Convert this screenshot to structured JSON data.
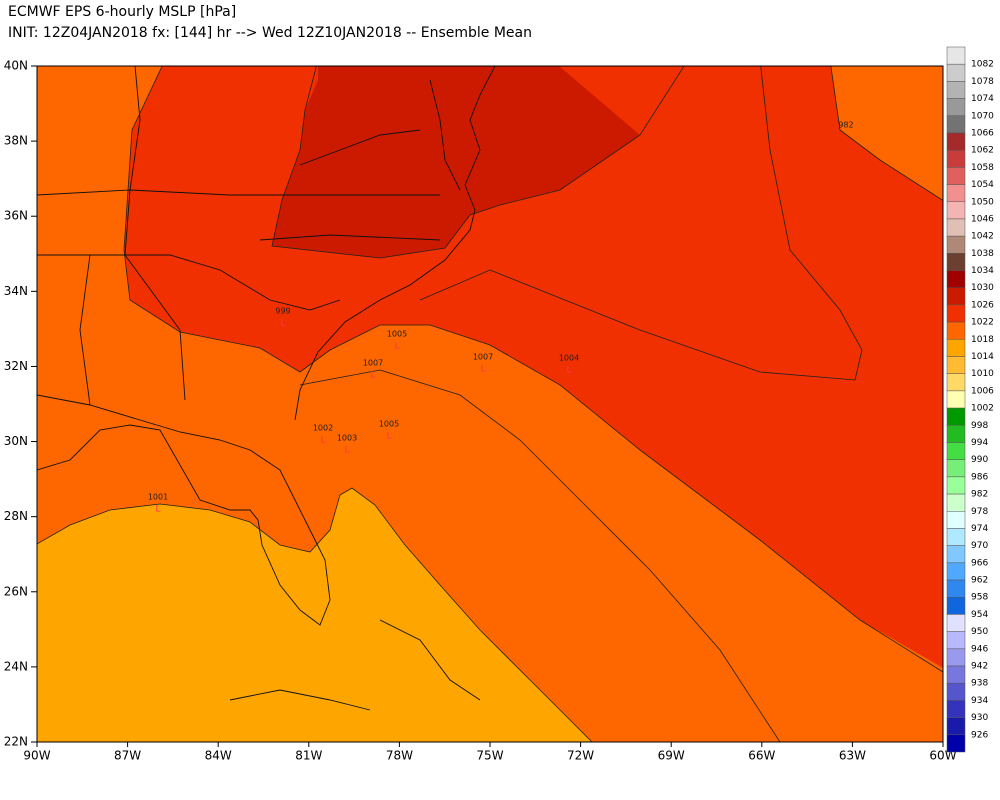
{
  "header": {
    "title": "ECMWF EPS 6-hourly MSLP [hPa]",
    "subtitle": "INIT: 12Z04JAN2018 fx: [144] hr --> Wed 12Z10JAN2018 -- Ensemble Mean"
  },
  "map": {
    "lat_labels": [
      "40N",
      "38N",
      "36N",
      "34N",
      "32N",
      "30N",
      "28N",
      "26N",
      "24N",
      "22N"
    ],
    "lon_labels": [
      "90W",
      "87W",
      "84W",
      "81W",
      "78W",
      "75W",
      "72W",
      "69W",
      "66W",
      "63W",
      "60W"
    ],
    "lows": [
      {
        "pressure": 1001,
        "symbol": "L"
      },
      {
        "pressure": 999,
        "symbol": "L"
      },
      {
        "pressure": 1005,
        "symbol": "L"
      },
      {
        "pressure": 1007,
        "symbol": "L"
      },
      {
        "pressure": 1004,
        "symbol": "L"
      },
      {
        "pressure": 1007,
        "symbol": "L"
      },
      {
        "pressure": 1002,
        "symbol": "L"
      },
      {
        "pressure": 1003,
        "symbol": "L"
      },
      {
        "pressure": 1005,
        "symbol": "L"
      }
    ],
    "contour_labels": [
      982
    ]
  },
  "colorbar": {
    "levels": [
      1082,
      1078,
      1074,
      1070,
      1066,
      1062,
      1058,
      1054,
      1050,
      1046,
      1042,
      1038,
      1034,
      1030,
      1026,
      1022,
      1018,
      1014,
      1010,
      1006,
      1002,
      998,
      994,
      990,
      986,
      982,
      978,
      974,
      970,
      966,
      962,
      958,
      954,
      950,
      946,
      942,
      938,
      934,
      930,
      926
    ],
    "colors": [
      "#e6e6e6",
      "#cccccc",
      "#b3b3b3",
      "#999999",
      "#737373",
      "#a52a2a",
      "#c83c3c",
      "#e06060",
      "#f29090",
      "#f4b4b4",
      "#e0c0b4",
      "#b08878",
      "#6b4030",
      "#a00000",
      "#cc1a00",
      "#f03000",
      "#fe6600",
      "#ffa500",
      "#ffbb33",
      "#ffd966",
      "#ffffb3",
      "#009900",
      "#22bb22",
      "#44dd44",
      "#77ee77",
      "#99ff99",
      "#ccffcc",
      "#e0ffff",
      "#b0e8ff",
      "#80c8ff",
      "#50a8ff",
      "#3088ee",
      "#1066dd",
      "#e0e0ff",
      "#b8b8ff",
      "#9999ee",
      "#7777dd",
      "#5555cc",
      "#3333bb",
      "#1a1aaa",
      "#0000aa"
    ]
  }
}
